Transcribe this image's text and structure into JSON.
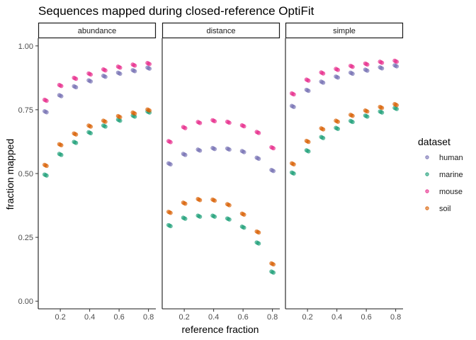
{
  "chart_data": {
    "type": "scatter",
    "title": "Sequences mapped during closed-reference OptiFit",
    "xlabel": "reference fraction",
    "ylabel": "fraction mapped",
    "xlim": [
      0.05,
      0.85
    ],
    "ylim": [
      -0.03,
      1.03
    ],
    "x_ticks": [
      0.2,
      0.4,
      0.6,
      0.8
    ],
    "x_tick_labels": [
      "0.2",
      "0.4",
      "0.6",
      "0.8"
    ],
    "y_ticks": [
      0,
      0.25,
      0.5,
      0.75,
      1
    ],
    "y_tick_labels": [
      "0.00",
      "0.25",
      "0.50",
      "0.75",
      "1.00"
    ],
    "facets": [
      "abundance",
      "distance",
      "simple"
    ],
    "legend": {
      "title": "dataset",
      "position": "right"
    },
    "grid": false,
    "x": [
      0.1,
      0.2,
      0.3,
      0.4,
      0.5,
      0.6,
      0.7,
      0.8
    ],
    "series": [
      {
        "name": "human",
        "color": "#7570b3",
        "values": {
          "abundance": [
            0.742,
            0.805,
            0.84,
            0.863,
            0.881,
            0.893,
            0.903,
            0.913
          ],
          "distance": [
            0.538,
            0.575,
            0.592,
            0.598,
            0.596,
            0.586,
            0.56,
            0.512
          ],
          "simple": [
            0.763,
            0.826,
            0.858,
            0.878,
            0.893,
            0.905,
            0.914,
            0.922
          ]
        }
      },
      {
        "name": "marine",
        "color": "#1b9e77",
        "values": {
          "abundance": [
            0.494,
            0.575,
            0.622,
            0.66,
            0.686,
            0.709,
            0.725,
            0.741
          ],
          "distance": [
            0.296,
            0.325,
            0.333,
            0.333,
            0.322,
            0.29,
            0.228,
            0.114
          ],
          "simple": [
            0.502,
            0.589,
            0.641,
            0.677,
            0.704,
            0.725,
            0.741,
            0.755
          ]
        }
      },
      {
        "name": "mouse",
        "color": "#e7298a",
        "values": {
          "abundance": [
            0.787,
            0.845,
            0.873,
            0.89,
            0.906,
            0.917,
            0.925,
            0.931
          ],
          "distance": [
            0.625,
            0.68,
            0.7,
            0.707,
            0.701,
            0.687,
            0.661,
            0.601
          ],
          "simple": [
            0.812,
            0.866,
            0.894,
            0.908,
            0.92,
            0.929,
            0.936,
            0.94
          ]
        }
      },
      {
        "name": "soil",
        "color": "#d95f02",
        "values": {
          "abundance": [
            0.532,
            0.613,
            0.655,
            0.686,
            0.705,
            0.723,
            0.737,
            0.749
          ],
          "distance": [
            0.348,
            0.384,
            0.398,
            0.396,
            0.378,
            0.341,
            0.271,
            0.146
          ],
          "simple": [
            0.538,
            0.626,
            0.675,
            0.705,
            0.728,
            0.745,
            0.759,
            0.77
          ]
        }
      }
    ]
  }
}
